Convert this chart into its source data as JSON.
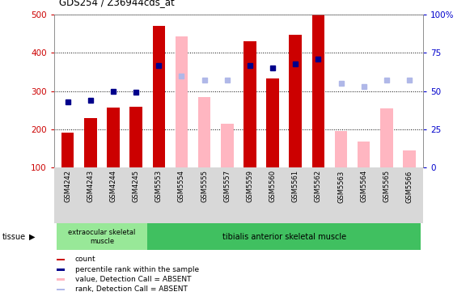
{
  "title": "GDS254 / Z36944cds_at",
  "samples": [
    "GSM4242",
    "GSM4243",
    "GSM4244",
    "GSM4245",
    "GSM5553",
    "GSM5554",
    "GSM5555",
    "GSM5557",
    "GSM5559",
    "GSM5560",
    "GSM5561",
    "GSM5562",
    "GSM5563",
    "GSM5564",
    "GSM5565",
    "GSM5566"
  ],
  "count": [
    190,
    230,
    257,
    258,
    470,
    null,
    null,
    null,
    430,
    332,
    448,
    500,
    null,
    null,
    null,
    null
  ],
  "percentile_left": [
    43,
    44,
    50,
    49,
    67,
    null,
    null,
    null,
    67,
    65,
    68,
    71,
    null,
    null,
    null,
    null
  ],
  "absent_value": [
    null,
    null,
    null,
    null,
    null,
    443,
    285,
    215,
    null,
    null,
    null,
    null,
    195,
    168,
    255,
    145
  ],
  "absent_rank_left": [
    null,
    null,
    null,
    null,
    null,
    60,
    57,
    57,
    null,
    null,
    null,
    null,
    55,
    53,
    57,
    57
  ],
  "ylim_left": [
    100,
    500
  ],
  "ylim_right": [
    0,
    100
  ],
  "yticks_left": [
    100,
    200,
    300,
    400,
    500
  ],
  "yticks_right": [
    0,
    25,
    50,
    75,
    100
  ],
  "yticklabels_right": [
    "0",
    "25",
    "50",
    "75",
    "100%"
  ],
  "count_color": "#cc0000",
  "absent_value_color": "#ffb6c1",
  "percentile_color": "#00008b",
  "absent_rank_color": "#b0b8e8",
  "left_tick_color": "#cc0000",
  "right_tick_color": "#0000cc",
  "tissue1_color": "#98e898",
  "tissue2_color": "#40c060",
  "gray_bg": "#d8d8d8"
}
